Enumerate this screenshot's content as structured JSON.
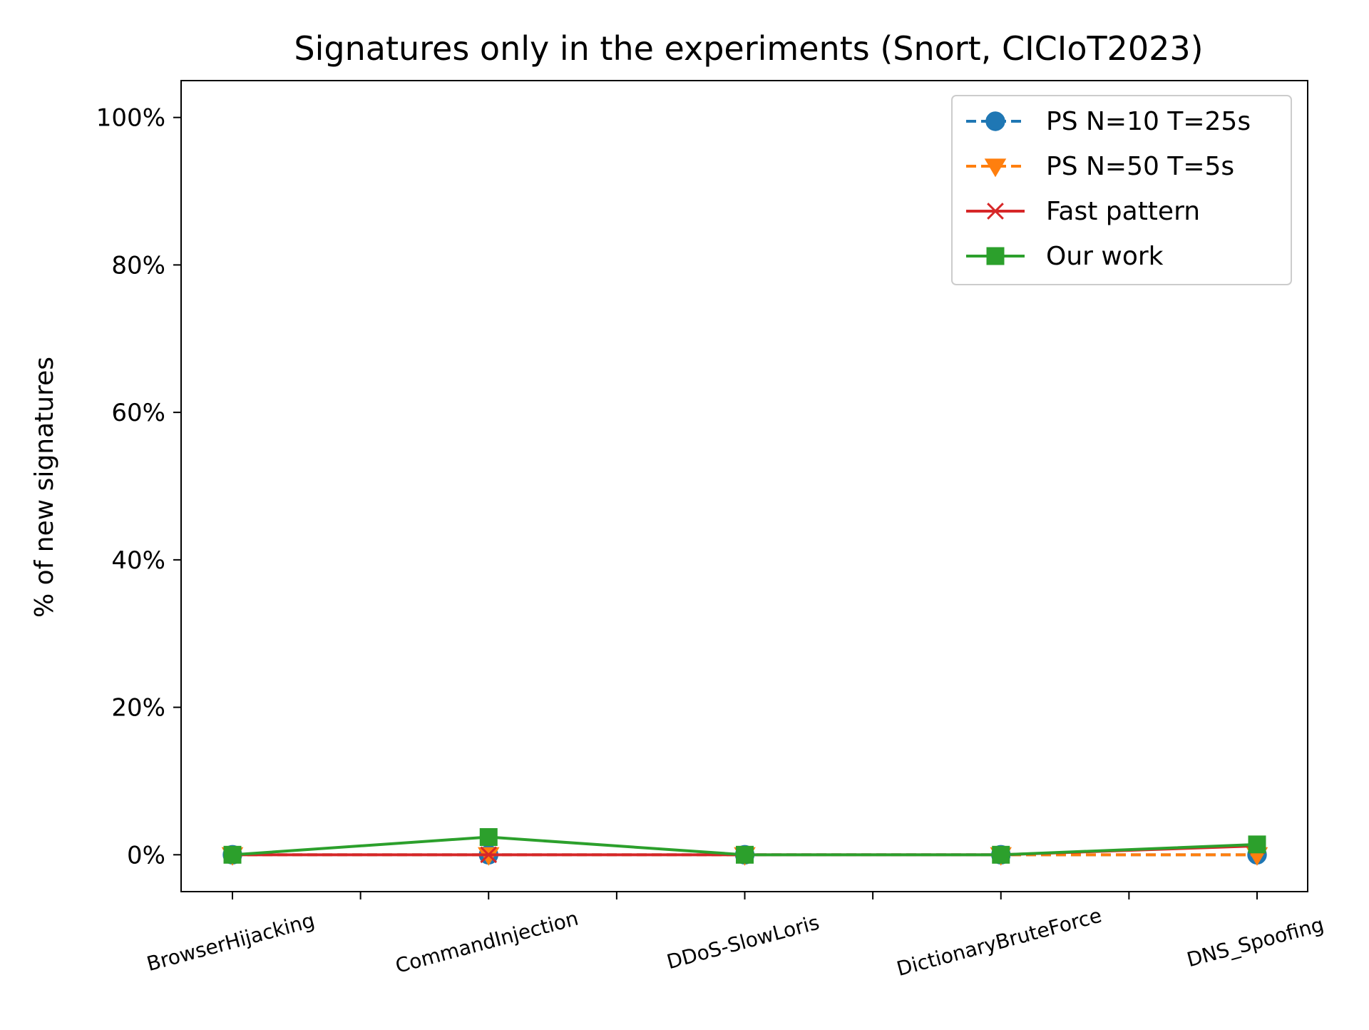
{
  "chart_data": {
    "type": "line",
    "title": "Signatures only in the experiments (Snort, CICIoT2023)",
    "xlabel": "",
    "ylabel": "% of new signatures",
    "categories": [
      "BrowserHijacking",
      "CommandInjection",
      "DDoS-SlowLoris",
      "DictionaryBruteForce",
      "DNS_Spoofing"
    ],
    "ylim": [
      -5,
      105
    ],
    "yticks": [
      0,
      20,
      40,
      60,
      80,
      100
    ],
    "ytick_labels": [
      "0%",
      "20%",
      "40%",
      "60%",
      "80%",
      "100%"
    ],
    "grid": false,
    "legend_position": "top-right",
    "series": [
      {
        "name": "PS N=10 T=25s",
        "values": [
          0,
          0,
          0,
          0,
          0
        ],
        "color": "#1f77b4",
        "marker": "circle",
        "linestyle": "dashed"
      },
      {
        "name": "PS N=50 T=5s",
        "values": [
          0,
          0,
          0,
          0,
          0
        ],
        "color": "#ff7f0e",
        "marker": "triangle-down",
        "linestyle": "dashed"
      },
      {
        "name": "Fast pattern",
        "values": [
          0,
          0,
          0,
          0,
          1.2
        ],
        "color": "#d62728",
        "marker": "x",
        "linestyle": "solid"
      },
      {
        "name": "Our work",
        "values": [
          0,
          2.4,
          0,
          0,
          1.4
        ],
        "color": "#2ca02c",
        "marker": "square",
        "linestyle": "solid"
      }
    ]
  }
}
